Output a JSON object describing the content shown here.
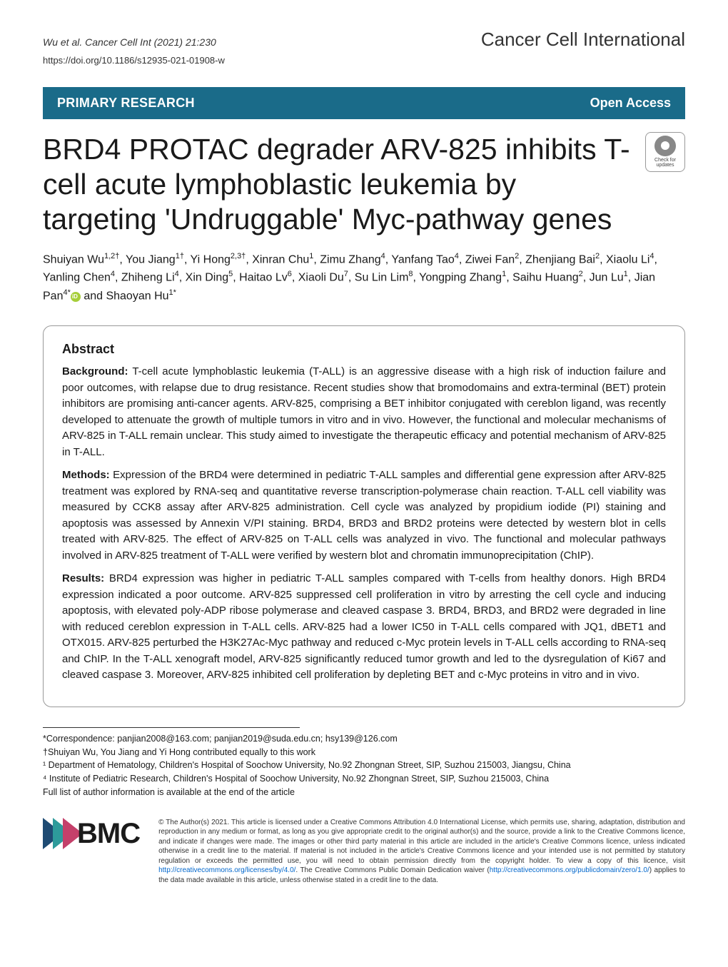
{
  "header": {
    "citation": "Wu et al. Cancer Cell Int          (2021) 21:230",
    "journal": "Cancer Cell International",
    "doi": "https://doi.org/10.1186/s12935-021-01908-w"
  },
  "banner": {
    "primary_research": "PRIMARY RESEARCH",
    "open_access": "Open Access"
  },
  "title": "BRD4 PROTAC degrader ARV-825 inhibits T-cell acute lymphoblastic leukemia by targeting 'Undruggable' Myc-pathway genes",
  "check_updates": "Check for updates",
  "authors_html": "Shuiyan Wu<sup>1,2†</sup>, You Jiang<sup>1†</sup>, Yi Hong<sup>2,3†</sup>, Xinran Chu<sup>1</sup>, Zimu Zhang<sup>4</sup>, Yanfang Tao<sup>4</sup>, Ziwei Fan<sup>2</sup>, Zhenjiang Bai<sup>2</sup>, Xiaolu Li<sup>4</sup>, Yanling Chen<sup>4</sup>, Zhiheng Li<sup>4</sup>, Xin Ding<sup>5</sup>, Haitao Lv<sup>6</sup>, Xiaoli Du<sup>7</sup>, Su Lin Lim<sup>8</sup>, Yongping Zhang<sup>1</sup>, Saihu Huang<sup>2</sup>, Jun Lu<sup>1</sup>, Jian Pan<sup>4*</sup><span class=\"orcid\"></span> and Shaoyan Hu<sup>1*</sup>",
  "abstract": {
    "title": "Abstract",
    "background_label": "Background:",
    "background": "T-cell acute lymphoblastic leukemia (T-ALL) is an aggressive disease with a high risk of induction failure and poor outcomes, with relapse due to drug resistance. Recent studies show that bromodomains and extra-terminal (BET) protein inhibitors are promising anti-cancer agents. ARV-825, comprising a BET inhibitor conjugated with cereblon ligand, was recently developed to attenuate the growth of multiple tumors in vitro and in vivo. However, the functional and molecular mechanisms of ARV-825 in T-ALL remain unclear. This study aimed to investigate the therapeutic efficacy and potential mechanism of ARV-825 in T-ALL.",
    "methods_label": "Methods:",
    "methods": "Expression of the BRD4 were determined in pediatric T-ALL samples and differential gene expression after ARV-825 treatment was explored by RNA-seq and quantitative reverse transcription-polymerase chain reaction. T-ALL cell viability was measured by CCK8 assay after ARV-825 administration. Cell cycle was analyzed by propidium iodide (PI) staining and apoptosis was assessed by Annexin V/PI staining. BRD4, BRD3 and BRD2 proteins were detected by western blot in cells treated with ARV-825. The effect of ARV-825 on T-ALL cells was analyzed in vivo. The functional and molecular pathways involved in ARV-825 treatment of T-ALL were verified by western blot and chromatin immunoprecipitation (ChIP).",
    "results_label": "Results:",
    "results": "BRD4 expression was higher in pediatric T-ALL samples compared with T-cells from healthy donors. High BRD4 expression indicated a poor outcome. ARV-825 suppressed cell proliferation in vitro by arresting the cell cycle and inducing apoptosis, with elevated poly-ADP ribose polymerase and cleaved caspase 3. BRD4, BRD3, and BRD2 were degraded in line with reduced cereblon expression in T-ALL cells. ARV-825 had a lower IC50 in T-ALL cells compared with JQ1, dBET1 and OTX015. ARV-825 perturbed the H3K27Ac-Myc pathway and reduced c-Myc protein levels in T-ALL cells according to RNA-seq and ChIP. In the T-ALL xenograft model, ARV-825 significantly reduced tumor growth and led to the dysregulation of Ki67 and cleaved caspase 3. Moreover, ARV-825 inhibited cell proliferation by depleting BET and c-Myc proteins in vitro and in vivo."
  },
  "correspondence": {
    "corr_label": "*Correspondence:",
    "emails": "panjian2008@163.com; panjian2019@suda.edu.cn; hsy139@126.com",
    "equal_contrib": "†Shuiyan Wu, You Jiang and Yi Hong contributed equally to this work",
    "affil1": "¹ Department of Hematology, Children's Hospital of Soochow University, No.92 Zhongnan Street, SIP, Suzhou 215003, Jiangsu, China",
    "affil4": "⁴ Institute of Pediatric Research, Children's Hospital of Soochow University, No.92 Zhongnan Street, SIP, Suzhou 215003, China",
    "full_list": "Full list of author information is available at the end of the article"
  },
  "footer": {
    "bmc": "BMC",
    "license_html": "© The Author(s) 2021. This article is licensed under a Creative Commons Attribution 4.0 International License, which permits use, sharing, adaptation, distribution and reproduction in any medium or format, as long as you give appropriate credit to the original author(s) and the source, provide a link to the Creative Commons licence, and indicate if changes were made. The images or other third party material in this article are included in the article's Creative Commons licence, unless indicated otherwise in a credit line to the material. If material is not included in the article's Creative Commons licence and your intended use is not permitted by statutory regulation or exceeds the permitted use, you will need to obtain permission directly from the copyright holder. To view a copy of this licence, visit <a href=\"#\">http://creativecommons.org/licenses/by/4.0/</a>. The Creative Commons Public Domain Dedication waiver (<a href=\"#\">http://creativecommons.org/publicdomain/zero/1.0/</a>) applies to the data made available in this article, unless otherwise stated in a credit line to the data."
  },
  "colors": {
    "banner_bg": "#1a6b89",
    "banner_text": "#ffffff",
    "link": "#0066cc",
    "orcid": "#a6ce39"
  }
}
